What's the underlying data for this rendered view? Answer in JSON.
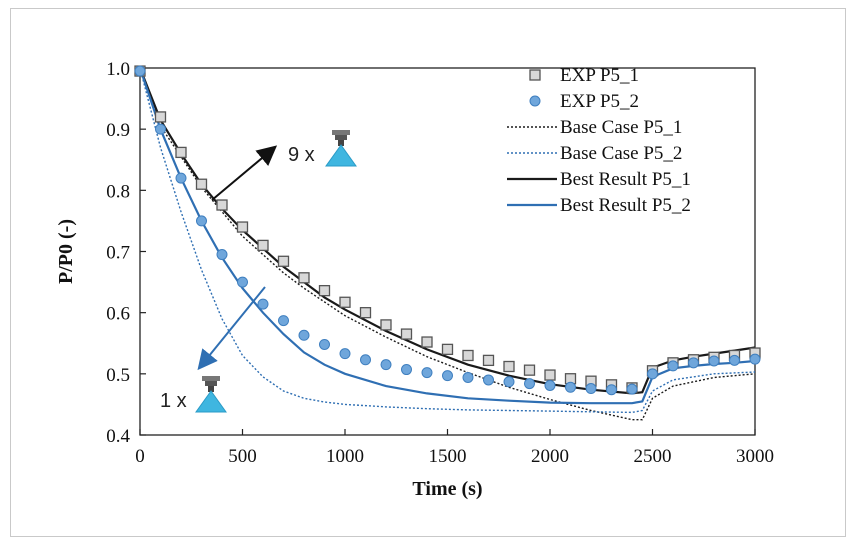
{
  "chart_data": {
    "type": "line",
    "xlabel": "Time (s)",
    "ylabel": "P/P0 (-)",
    "xlim": [
      0,
      3000
    ],
    "ylim": [
      0.4,
      1.0
    ],
    "xticks": [
      "0",
      "500",
      "1000",
      "1500",
      "2000",
      "2500",
      "3000"
    ],
    "yticks": [
      "0.4",
      "0.5",
      "0.6",
      "0.7",
      "0.8",
      "0.9",
      "1.0"
    ],
    "grid": false,
    "legend_position": "top-right",
    "annotations": [
      {
        "text": "9 x",
        "nozzle_icon": "nozzle-icon"
      },
      {
        "text": "1 x",
        "nozzle_icon": "nozzle-icon"
      }
    ],
    "colors": {
      "black": "#1a1a1a",
      "blue": "#2f6fb3",
      "nozzle_blue": "#3fb6e0"
    },
    "series": [
      {
        "name": "EXP P5_1",
        "kind": "marker-square",
        "color": "#555555",
        "x": [
          0,
          100,
          200,
          300,
          400,
          500,
          600,
          700,
          800,
          900,
          1000,
          1100,
          1200,
          1300,
          1400,
          1500,
          1600,
          1700,
          1800,
          1900,
          2000,
          2100,
          2200,
          2300,
          2400,
          2500,
          2600,
          2700,
          2800,
          2900,
          3000
        ],
        "y": [
          0.995,
          0.92,
          0.862,
          0.81,
          0.776,
          0.74,
          0.71,
          0.684,
          0.657,
          0.636,
          0.617,
          0.6,
          0.58,
          0.565,
          0.552,
          0.54,
          0.53,
          0.522,
          0.512,
          0.506,
          0.498,
          0.492,
          0.488,
          0.482,
          0.477,
          0.505,
          0.518,
          0.523,
          0.527,
          0.53,
          0.534
        ]
      },
      {
        "name": "EXP P5_2",
        "kind": "marker-circle",
        "color": "#4f8fcf",
        "x": [
          0,
          100,
          200,
          300,
          400,
          500,
          600,
          700,
          800,
          900,
          1000,
          1100,
          1200,
          1300,
          1400,
          1500,
          1600,
          1700,
          1800,
          1900,
          2000,
          2100,
          2200,
          2300,
          2400,
          2500,
          2600,
          2700,
          2800,
          2900,
          3000
        ],
        "y": [
          0.995,
          0.9,
          0.82,
          0.75,
          0.695,
          0.65,
          0.614,
          0.587,
          0.563,
          0.548,
          0.533,
          0.523,
          0.515,
          0.507,
          0.502,
          0.497,
          0.494,
          0.49,
          0.487,
          0.484,
          0.481,
          0.478,
          0.476,
          0.474,
          0.475,
          0.5,
          0.513,
          0.518,
          0.521,
          0.522,
          0.524
        ]
      },
      {
        "name": "Base Case P5_1",
        "kind": "line-dotted",
        "color": "#1a1a1a",
        "x": [
          0,
          100,
          200,
          300,
          400,
          500,
          600,
          700,
          800,
          1000,
          1200,
          1400,
          1600,
          1800,
          2000,
          2200,
          2400,
          2450,
          2500,
          2600,
          2800,
          3000
        ],
        "y": [
          1.0,
          0.905,
          0.855,
          0.805,
          0.765,
          0.725,
          0.695,
          0.665,
          0.64,
          0.595,
          0.56,
          0.528,
          0.502,
          0.478,
          0.458,
          0.44,
          0.425,
          0.425,
          0.46,
          0.48,
          0.494,
          0.5
        ]
      },
      {
        "name": "Base Case P5_2",
        "kind": "line-dotted",
        "color": "#2f6fb3",
        "x": [
          0,
          100,
          200,
          300,
          400,
          500,
          600,
          700,
          800,
          900,
          1000,
          1200,
          1400,
          1600,
          1800,
          2000,
          2200,
          2400,
          2450,
          2500,
          2600,
          2800,
          3000
        ],
        "y": [
          1.0,
          0.87,
          0.765,
          0.67,
          0.59,
          0.53,
          0.495,
          0.472,
          0.46,
          0.454,
          0.45,
          0.446,
          0.443,
          0.441,
          0.44,
          0.439,
          0.438,
          0.437,
          0.44,
          0.472,
          0.49,
          0.5,
          0.503
        ]
      },
      {
        "name": "Best Result P5_1",
        "kind": "line-solid",
        "color": "#1a1a1a",
        "x": [
          0,
          100,
          200,
          300,
          400,
          500,
          600,
          700,
          800,
          900,
          1000,
          1200,
          1400,
          1600,
          1800,
          2000,
          2200,
          2400,
          2450,
          2500,
          2600,
          2700,
          2800,
          2900,
          3000
        ],
        "y": [
          1.0,
          0.915,
          0.86,
          0.81,
          0.77,
          0.735,
          0.705,
          0.675,
          0.65,
          0.625,
          0.605,
          0.57,
          0.54,
          0.515,
          0.497,
          0.483,
          0.474,
          0.468,
          0.47,
          0.51,
          0.522,
          0.528,
          0.533,
          0.538,
          0.543
        ]
      },
      {
        "name": "Best Result P5_2",
        "kind": "line-solid",
        "color": "#2f6fb3",
        "x": [
          0,
          100,
          200,
          300,
          400,
          500,
          600,
          700,
          800,
          900,
          1000,
          1200,
          1400,
          1600,
          1800,
          2000,
          2200,
          2400,
          2450,
          2500,
          2600,
          2700,
          2800,
          2900,
          3000
        ],
        "y": [
          1.0,
          0.9,
          0.82,
          0.75,
          0.69,
          0.64,
          0.6,
          0.565,
          0.535,
          0.515,
          0.5,
          0.48,
          0.468,
          0.46,
          0.456,
          0.453,
          0.452,
          0.452,
          0.455,
          0.495,
          0.509,
          0.513,
          0.516,
          0.518,
          0.521
        ]
      }
    ]
  }
}
